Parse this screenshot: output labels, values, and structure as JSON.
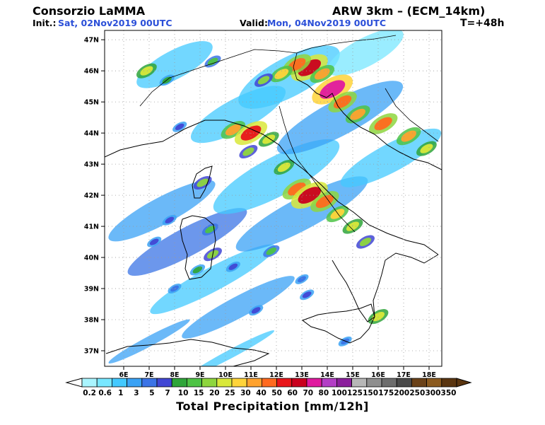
{
  "header": {
    "org": "Consorzio LaMMA",
    "model": "ARW 3km – (ECM_14km)",
    "init_label": "Init.:",
    "init_value": "Sat, 02Nov2019 00UTC",
    "valid_label": "Valid:",
    "valid_value": "Mon, 04Nov2019 00UTC",
    "lead": "T=+48h"
  },
  "map": {
    "lat_labels": [
      "47N",
      "46N",
      "45N",
      "44N",
      "43N",
      "42N",
      "41N",
      "40N",
      "39N",
      "38N",
      "37N"
    ],
    "lon_labels": [
      "6E",
      "7E",
      "8E",
      "9E",
      "10E",
      "11E",
      "12E",
      "13E",
      "14E",
      "15E",
      "16E",
      "17E",
      "18E"
    ],
    "precip_cells": [
      {
        "lon": 13.3,
        "lat": 46.1,
        "v": 60
      },
      {
        "lon": 12.8,
        "lat": 46.2,
        "v": 40
      },
      {
        "lon": 13.8,
        "lat": 45.9,
        "v": 30
      },
      {
        "lon": 12.2,
        "lat": 45.9,
        "v": 25
      },
      {
        "lon": 11.5,
        "lat": 45.7,
        "v": 15
      },
      {
        "lon": 14.2,
        "lat": 45.4,
        "v": 70
      },
      {
        "lon": 14.6,
        "lat": 45.0,
        "v": 40
      },
      {
        "lon": 15.2,
        "lat": 44.6,
        "v": 30
      },
      {
        "lon": 16.2,
        "lat": 44.3,
        "v": 40
      },
      {
        "lon": 17.2,
        "lat": 43.9,
        "v": 30
      },
      {
        "lon": 17.9,
        "lat": 43.5,
        "v": 20
      },
      {
        "lon": 10.3,
        "lat": 44.1,
        "v": 30
      },
      {
        "lon": 11.0,
        "lat": 44.0,
        "v": 50
      },
      {
        "lon": 11.7,
        "lat": 43.8,
        "v": 20
      },
      {
        "lon": 10.9,
        "lat": 43.4,
        "v": 15
      },
      {
        "lon": 12.3,
        "lat": 42.9,
        "v": 20
      },
      {
        "lon": 12.8,
        "lat": 42.2,
        "v": 40
      },
      {
        "lon": 13.3,
        "lat": 42.0,
        "v": 60
      },
      {
        "lon": 13.9,
        "lat": 41.8,
        "v": 40
      },
      {
        "lon": 14.4,
        "lat": 41.4,
        "v": 25
      },
      {
        "lon": 15.0,
        "lat": 41.0,
        "v": 20
      },
      {
        "lon": 15.5,
        "lat": 40.5,
        "v": 15
      },
      {
        "lon": 9.1,
        "lat": 42.4,
        "v": 15
      },
      {
        "lon": 9.4,
        "lat": 40.9,
        "v": 10
      },
      {
        "lon": 9.5,
        "lat": 40.1,
        "v": 15
      },
      {
        "lon": 8.9,
        "lat": 39.6,
        "v": 7
      },
      {
        "lon": 7.8,
        "lat": 41.2,
        "v": 5
      },
      {
        "lon": 7.2,
        "lat": 40.5,
        "v": 5
      },
      {
        "lon": 8.0,
        "lat": 39.0,
        "v": 3
      },
      {
        "lon": 10.3,
        "lat": 39.7,
        "v": 5
      },
      {
        "lon": 11.8,
        "lat": 40.2,
        "v": 10
      },
      {
        "lon": 13.0,
        "lat": 39.3,
        "v": 3
      },
      {
        "lon": 11.2,
        "lat": 38.3,
        "v": 5
      },
      {
        "lon": 13.2,
        "lat": 38.8,
        "v": 5
      },
      {
        "lon": 7.7,
        "lat": 45.7,
        "v": 7
      },
      {
        "lon": 6.9,
        "lat": 46.0,
        "v": 20
      },
      {
        "lon": 9.5,
        "lat": 46.3,
        "v": 10
      },
      {
        "lon": 8.2,
        "lat": 44.2,
        "v": 5
      },
      {
        "lon": 14.7,
        "lat": 37.3,
        "v": 3
      },
      {
        "lon": 16.0,
        "lat": 38.1,
        "v": 20
      }
    ]
  },
  "colorbar": {
    "labels": [
      "0.2",
      "0.6",
      "1",
      "3",
      "5",
      "7",
      "10",
      "15",
      "20",
      "25",
      "30",
      "40",
      "50",
      "60",
      "70",
      "80",
      "100",
      "125",
      "150",
      "175",
      "200",
      "250",
      "300",
      "350"
    ],
    "colors": [
      "#aaf5ff",
      "#78e7ff",
      "#43c9ff",
      "#3aa2f5",
      "#3b74e6",
      "#4147d4",
      "#2fa53a",
      "#4ec345",
      "#8ed63e",
      "#d9e83a",
      "#ffd43a",
      "#ffa22e",
      "#ff6a1f",
      "#e8151a",
      "#c9001e",
      "#e0199f",
      "#b33ec6",
      "#8b1f9c",
      "#b7b7b7",
      "#8f8f8f",
      "#6d6d6d",
      "#4a4a4a",
      "#6b4219",
      "#8b5a1f",
      "#5a3510"
    ],
    "title": "Total Precipitation [mm/12h]"
  }
}
